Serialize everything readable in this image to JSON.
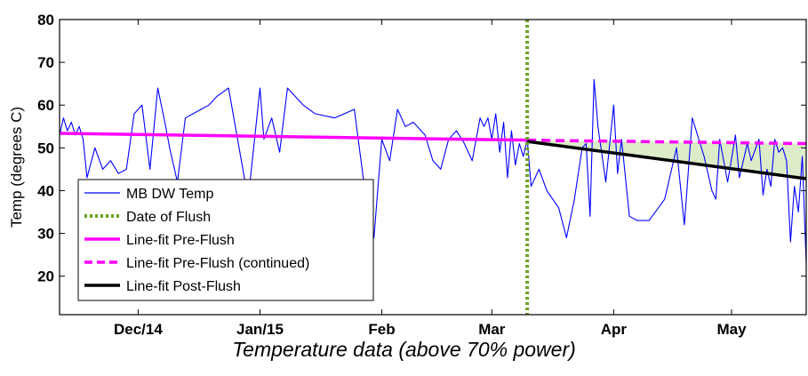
{
  "caption": "Temperature data (above 70% power)",
  "chart_data": {
    "type": "line",
    "title": "",
    "xlabel": "",
    "ylabel": "Temp (degrees C)",
    "ylim": [
      11,
      80
    ],
    "y_ticks": [
      20,
      30,
      40,
      50,
      60,
      70,
      80
    ],
    "x_domain": [
      "2014-11-11",
      "2015-05-20"
    ],
    "x_ticks": [
      {
        "date": "2014-12-01",
        "label": "Dec/14"
      },
      {
        "date": "2015-01-01",
        "label": "Jan/15"
      },
      {
        "date": "2015-02-01",
        "label": "Feb"
      },
      {
        "date": "2015-03-01",
        "label": "Mar"
      },
      {
        "date": "2015-04-01",
        "label": "Apr"
      },
      {
        "date": "2015-05-01",
        "label": "May"
      }
    ],
    "flush_date": "2015-03-10",
    "colors": {
      "temp": "#0000ff",
      "flush": "#6aa121",
      "prefit": "#ff00ff",
      "postfit": "#000000",
      "fill": "#dcecc8"
    },
    "legend": [
      {
        "key": "temp",
        "label": "MB DW Temp",
        "style": "thin"
      },
      {
        "key": "flush",
        "label": "Date of Flush",
        "style": "dotted"
      },
      {
        "key": "prefit",
        "label": "Line-fit Pre-Flush",
        "style": "thick"
      },
      {
        "key": "prefit",
        "label": "Line-fit Pre-Flush (continued)",
        "style": "dashed"
      },
      {
        "key": "postfit",
        "label": "Line-fit Post-Flush",
        "style": "thick"
      }
    ],
    "series": [
      {
        "name": "MB DW Temp",
        "x": [
          "2014-11-11",
          "2014-11-12",
          "2014-11-13",
          "2014-11-14",
          "2014-11-15",
          "2014-11-16",
          "2014-11-17",
          "2014-11-18",
          "2014-11-20",
          "2014-11-22",
          "2014-11-24",
          "2014-11-26",
          "2014-11-28",
          "2014-11-30",
          "2014-12-02",
          "2014-12-04",
          "2014-12-06",
          "2014-12-08",
          "2014-12-09",
          "2014-12-11",
          "2014-12-13",
          "2014-12-15",
          "2014-12-17",
          "2014-12-19",
          "2014-12-21",
          "2014-12-24",
          "2014-12-29",
          "2015-01-01",
          "2015-01-02",
          "2015-01-04",
          "2015-01-06",
          "2015-01-08",
          "2015-01-10",
          "2015-01-12",
          "2015-01-15",
          "2015-01-20",
          "2015-01-25",
          "2015-01-28",
          "2015-01-30",
          "2015-02-01",
          "2015-02-03",
          "2015-02-05",
          "2015-02-07",
          "2015-02-09",
          "2015-02-12",
          "2015-02-14",
          "2015-02-16",
          "2015-02-18",
          "2015-02-20",
          "2015-02-22",
          "2015-02-24",
          "2015-02-26",
          "2015-02-27",
          "2015-02-28",
          "2015-03-01",
          "2015-03-02",
          "2015-03-03",
          "2015-03-04",
          "2015-03-05",
          "2015-03-06",
          "2015-03-07",
          "2015-03-08",
          "2015-03-09",
          "2015-03-10",
          "2015-03-11",
          "2015-03-13",
          "2015-03-15",
          "2015-03-18",
          "2015-03-20",
          "2015-03-22",
          "2015-03-24",
          "2015-03-25",
          "2015-03-26",
          "2015-03-27",
          "2015-03-28",
          "2015-03-30",
          "2015-04-01",
          "2015-04-02",
          "2015-04-03",
          "2015-04-05",
          "2015-04-07",
          "2015-04-10",
          "2015-04-14",
          "2015-04-17",
          "2015-04-19",
          "2015-04-21",
          "2015-04-24",
          "2015-04-26",
          "2015-04-27",
          "2015-04-28",
          "2015-04-30",
          "2015-05-02",
          "2015-05-03",
          "2015-05-05",
          "2015-05-06",
          "2015-05-08",
          "2015-05-09",
          "2015-05-10",
          "2015-05-11",
          "2015-05-12",
          "2015-05-13",
          "2015-05-14",
          "2015-05-15",
          "2015-05-16",
          "2015-05-17",
          "2015-05-18",
          "2015-05-19",
          "2015-05-20"
        ],
        "y": [
          53,
          57,
          54,
          56,
          53,
          55,
          52,
          43,
          50,
          45,
          47,
          44,
          45,
          58,
          60,
          45,
          64,
          55,
          50,
          42,
          57,
          58,
          59,
          60,
          62,
          64,
          38,
          64,
          52,
          57,
          49,
          64,
          62,
          60,
          58,
          57,
          59,
          38,
          29,
          52,
          47,
          59,
          55,
          56,
          53,
          47,
          45,
          52,
          54,
          51,
          47,
          57,
          55,
          57,
          52,
          58,
          49,
          56,
          43,
          54,
          46,
          51,
          48,
          52,
          41,
          45,
          40,
          36,
          29,
          38,
          50,
          51,
          34,
          66,
          55,
          42,
          60,
          44,
          52,
          34,
          33,
          33,
          38,
          50,
          32,
          57,
          48,
          40,
          38,
          52,
          42,
          53,
          43,
          51,
          47,
          52,
          39,
          45,
          41,
          52,
          49,
          50,
          47,
          28,
          41,
          35,
          48,
          23
        ]
      },
      {
        "name": "Line-fit Pre-Flush",
        "x": [
          "2014-11-11",
          "2015-03-10"
        ],
        "y": [
          53.4,
          51.8
        ]
      },
      {
        "name": "Line-fit Pre-Flush (continued)",
        "x": [
          "2015-03-10",
          "2015-05-20"
        ],
        "y": [
          51.8,
          51.0
        ]
      },
      {
        "name": "Line-fit Post-Flush",
        "x": [
          "2015-03-10",
          "2015-05-20"
        ],
        "y": [
          51.5,
          42.8
        ]
      }
    ]
  }
}
